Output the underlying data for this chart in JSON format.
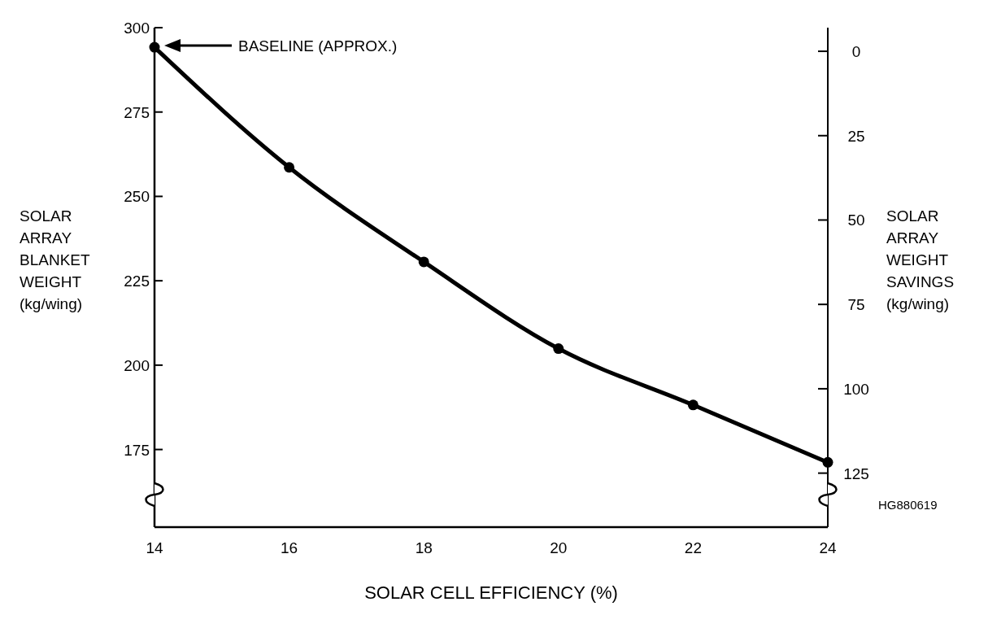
{
  "chart_data": {
    "type": "line",
    "xlabel": "SOLAR CELL EFFICIENCY (%)",
    "ylabel": "SOLAR\nARRAY\nBLANKET\nWEIGHT\n(kg/wing)",
    "y2label": "SOLAR\nARRAY\nWEIGHT\nSAVINGS\n(kg/wing)",
    "x": [
      14,
      16,
      18,
      20,
      22,
      24
    ],
    "series": [
      {
        "color": "#000000",
        "values": [
          294.2,
          258.6,
          230.6,
          204.9,
          188.2,
          171.2
        ]
      }
    ],
    "xlim": [
      14,
      24
    ],
    "xticks": [
      14,
      16,
      18,
      20,
      22,
      24
    ],
    "ylim": [
      152,
      300
    ],
    "yticks": [
      175,
      200,
      225,
      250,
      275,
      300
    ],
    "y2lim": [
      141,
      -7
    ],
    "y2ticks": [
      0,
      25,
      50,
      75,
      100,
      125
    ],
    "marker": "circle",
    "line_style": "solid",
    "grid": false,
    "annotations": [
      "BASELINE (APPROX.)",
      "HG880619"
    ]
  }
}
